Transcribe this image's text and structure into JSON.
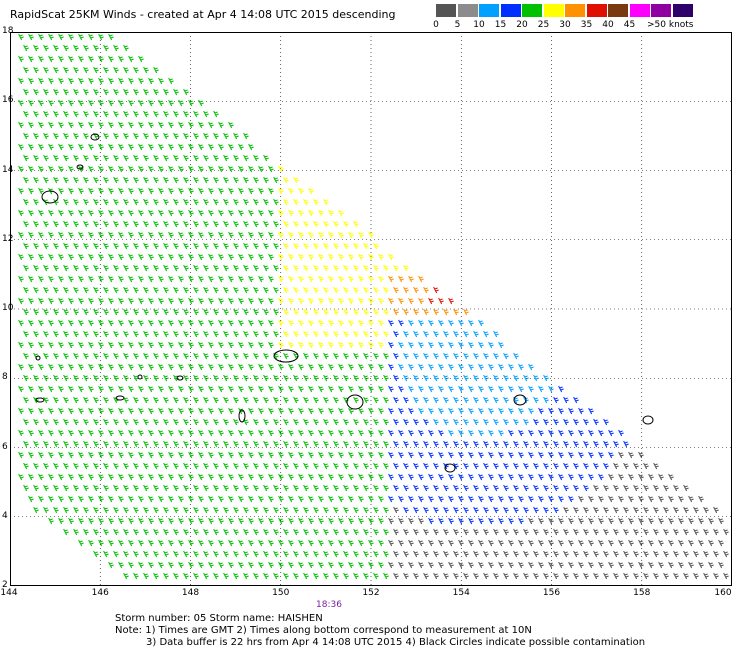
{
  "title": "RapidScat 25KM Winds - created at Apr  4 14:08 UTC 2015 descending",
  "scale": {
    "ticks": [
      "0",
      "5",
      "10",
      "15",
      "20",
      "25",
      "30",
      "35",
      "40",
      "45",
      ">50 knots"
    ],
    "colors": [
      "#555555",
      "#8c8c8c",
      "#00a0ff",
      "#0030ff",
      "#00c000",
      "#ffff00",
      "#ff9000",
      "#e01000",
      "#7a3a10",
      "#ff00ff",
      "#9000a0",
      "#30006a"
    ]
  },
  "axes": {
    "x_ticks": [
      "144",
      "146",
      "148",
      "150",
      "152",
      "154",
      "156",
      "158",
      "160"
    ],
    "y_ticks": [
      "2",
      "4",
      "6",
      "8",
      "10",
      "12",
      "14",
      "16",
      "18"
    ]
  },
  "time_label": "18:36",
  "storm_line": "Storm number: 05     Storm name: HAISHEN",
  "note_line1": "Note: 1) Times are GMT  2) Times along bottom correspond to measurement at 10N",
  "note_line2": "3) Data buffer is 22 hrs from Apr  4 14:08 UTC 2015   4) Black Circles indicate possible contamination"
}
